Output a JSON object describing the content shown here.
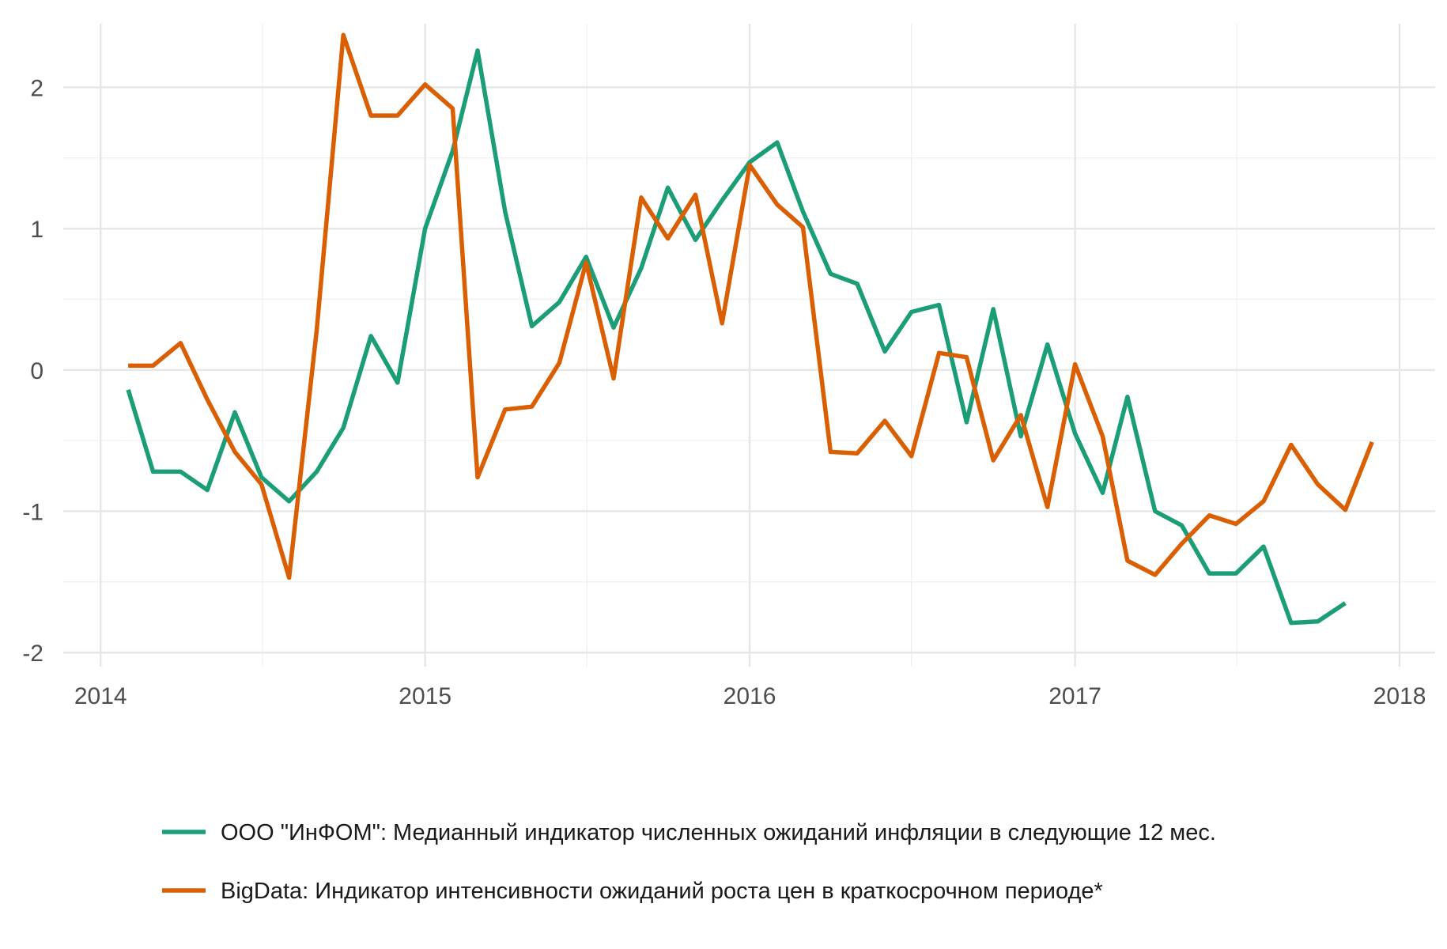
{
  "chart_data": {
    "type": "line",
    "title": "",
    "xlabel": "",
    "ylabel": "",
    "x_axis": {
      "type": "date",
      "range": [
        "2013-11-20",
        "2018-02-10"
      ],
      "ticks": [
        "2014-01-01",
        "2015-01-01",
        "2016-01-01",
        "2017-01-01",
        "2018-01-01"
      ],
      "tick_labels": [
        "2014",
        "2015",
        "2016",
        "2017",
        "2018"
      ],
      "minor_ticks": [
        "2014-07-02",
        "2015-07-02",
        "2016-07-01",
        "2017-07-02"
      ]
    },
    "y_axis": {
      "range": [
        -2.1,
        2.45
      ],
      "ticks": [
        -2,
        -1,
        0,
        1,
        2
      ],
      "tick_labels": [
        "-2",
        "-1",
        "0",
        "1",
        "2"
      ],
      "minor_ticks": [
        -1.5,
        -0.5,
        0.5,
        1.5
      ]
    },
    "grid": true,
    "legend_position": "bottom",
    "series": [
      {
        "name": "ООО \"ИнФОМ\": Медианный индикатор численных ожиданий инфляции в следующие 12 мес.",
        "color": "#1b9e77",
        "points": [
          [
            "2014-02-01",
            -0.14
          ],
          [
            "2014-03-01",
            -0.72
          ],
          [
            "2014-04-01",
            -0.72
          ],
          [
            "2014-05-01",
            -0.85
          ],
          [
            "2014-06-01",
            -0.3
          ],
          [
            "2014-07-01",
            -0.76
          ],
          [
            "2014-08-01",
            -0.93
          ],
          [
            "2014-09-01",
            -0.72
          ],
          [
            "2014-10-01",
            -0.41
          ],
          [
            "2014-11-01",
            0.24
          ],
          [
            "2014-12-01",
            -0.09
          ],
          [
            "2015-01-01",
            1.0
          ],
          [
            "2015-02-01",
            1.55
          ],
          [
            "2015-03-01",
            2.26
          ],
          [
            "2015-04-01",
            1.12
          ],
          [
            "2015-05-01",
            0.31
          ],
          [
            "2015-06-01",
            0.48
          ],
          [
            "2015-07-01",
            0.8
          ],
          [
            "2015-08-01",
            0.3
          ],
          [
            "2015-09-01",
            0.72
          ],
          [
            "2015-10-01",
            1.29
          ],
          [
            "2015-11-01",
            0.92
          ],
          [
            "2015-12-01",
            1.2
          ],
          [
            "2016-01-01",
            1.47
          ],
          [
            "2016-02-01",
            1.61
          ],
          [
            "2016-03-01",
            1.12
          ],
          [
            "2016-04-01",
            0.68
          ],
          [
            "2016-05-01",
            0.61
          ],
          [
            "2016-06-01",
            0.13
          ],
          [
            "2016-07-01",
            0.41
          ],
          [
            "2016-08-01",
            0.46
          ],
          [
            "2016-09-01",
            -0.37
          ],
          [
            "2016-10-01",
            0.43
          ],
          [
            "2016-11-01",
            -0.47
          ],
          [
            "2016-12-01",
            0.18
          ],
          [
            "2017-01-01",
            -0.45
          ],
          [
            "2017-02-01",
            -0.87
          ],
          [
            "2017-03-01",
            -0.19
          ],
          [
            "2017-04-01",
            -1.0
          ],
          [
            "2017-05-01",
            -1.1
          ],
          [
            "2017-06-01",
            -1.44
          ],
          [
            "2017-07-01",
            -1.44
          ],
          [
            "2017-08-01",
            -1.25
          ],
          [
            "2017-09-01",
            -1.79
          ],
          [
            "2017-10-01",
            -1.78
          ],
          [
            "2017-11-01",
            -1.65
          ]
        ]
      },
      {
        "name": "BigData: Индикатор интенсивности ожиданий роста цен в краткосрочном периоде*",
        "color": "#d95f02",
        "points": [
          [
            "2014-02-01",
            0.03
          ],
          [
            "2014-03-01",
            0.03
          ],
          [
            "2014-04-01",
            0.19
          ],
          [
            "2014-05-01",
            -0.21
          ],
          [
            "2014-06-01",
            -0.58
          ],
          [
            "2014-07-01",
            -0.81
          ],
          [
            "2014-08-01",
            -1.47
          ],
          [
            "2014-09-01",
            0.28
          ],
          [
            "2014-10-01",
            2.37
          ],
          [
            "2014-11-01",
            1.8
          ],
          [
            "2014-12-01",
            1.8
          ],
          [
            "2015-01-01",
            2.02
          ],
          [
            "2015-02-01",
            1.85
          ],
          [
            "2015-03-01",
            -0.76
          ],
          [
            "2015-04-01",
            -0.28
          ],
          [
            "2015-05-01",
            -0.26
          ],
          [
            "2015-06-01",
            0.05
          ],
          [
            "2015-07-01",
            0.76
          ],
          [
            "2015-08-01",
            -0.06
          ],
          [
            "2015-09-01",
            1.22
          ],
          [
            "2015-10-01",
            0.93
          ],
          [
            "2015-11-01",
            1.24
          ],
          [
            "2015-12-01",
            0.33
          ],
          [
            "2016-01-01",
            1.45
          ],
          [
            "2016-02-01",
            1.17
          ],
          [
            "2016-03-01",
            1.01
          ],
          [
            "2016-04-01",
            -0.58
          ],
          [
            "2016-05-01",
            -0.59
          ],
          [
            "2016-06-01",
            -0.36
          ],
          [
            "2016-07-01",
            -0.61
          ],
          [
            "2016-08-01",
            0.12
          ],
          [
            "2016-09-01",
            0.09
          ],
          [
            "2016-10-01",
            -0.64
          ],
          [
            "2016-11-01",
            -0.32
          ],
          [
            "2016-12-01",
            -0.97
          ],
          [
            "2017-01-01",
            0.04
          ],
          [
            "2017-02-01",
            -0.47
          ],
          [
            "2017-03-01",
            -1.35
          ],
          [
            "2017-04-01",
            -1.45
          ],
          [
            "2017-05-01",
            -1.23
          ],
          [
            "2017-06-01",
            -1.03
          ],
          [
            "2017-07-01",
            -1.09
          ],
          [
            "2017-08-01",
            -0.93
          ],
          [
            "2017-09-01",
            -0.53
          ],
          [
            "2017-10-01",
            -0.81
          ],
          [
            "2017-11-01",
            -0.99
          ],
          [
            "2017-12-01",
            -0.51
          ]
        ]
      }
    ]
  }
}
